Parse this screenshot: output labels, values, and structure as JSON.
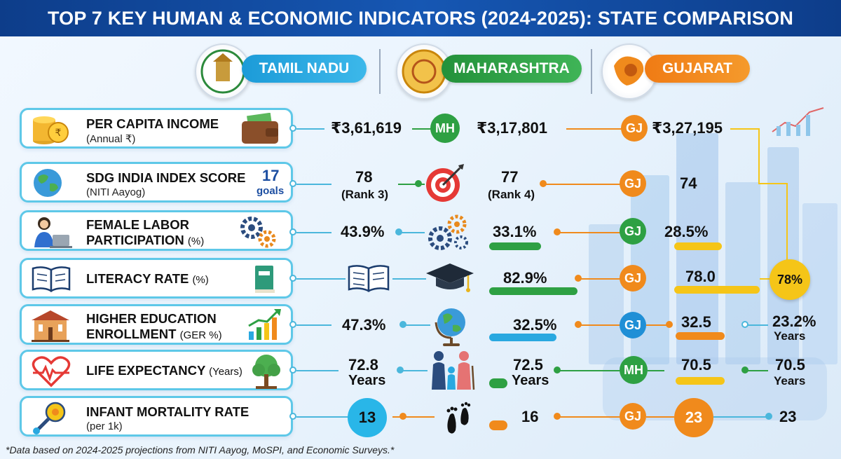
{
  "title": "TOP 7 KEY HUMAN & ECONOMIC INDICATORS (2024-2025): STATE COMPARISON",
  "colors": {
    "tamil_nadu": "#29a8e0",
    "maharashtra": "#2ea043",
    "gujarat": "#f08a1c",
    "card_border": "#5ec8e8",
    "title_bg": "#0d3d8a",
    "highlight_yellow": "#f5c518"
  },
  "states": [
    {
      "name": "TAMIL NADU",
      "emblem_icon": "tamil-nadu-emblem-icon"
    },
    {
      "name": "MAHARASHTRA",
      "emblem_icon": "maharashtra-emblem-icon"
    },
    {
      "name": "GUJARAT",
      "emblem_icon": "gujarat-map-lion-icon"
    }
  ],
  "indicators": {
    "income": {
      "label": "PER CAPITA INCOME",
      "sub": "(Annual ₹)",
      "icons": [
        "coins-icon",
        "wallet-icon"
      ],
      "tn": "₹3,61,619",
      "mh": "₹3,17,801",
      "gj": "₹3,27,195",
      "badges": [
        "MH",
        "GJ"
      ]
    },
    "sdg": {
      "label": "SDG INDIA INDEX SCORE",
      "sub": "(NITI Aayog)",
      "goals_number": "17",
      "goals_label": "goals",
      "icons": [
        "globe-icon",
        "target-icon"
      ],
      "tn": "78",
      "tn_rank": "(Rank 3)",
      "mh": "77",
      "mh_rank": "(Rank 4)",
      "gj": "74",
      "badges": [
        "GJ"
      ]
    },
    "female": {
      "label1": "FEMALE LABOR",
      "label2": "PARTICIPATION",
      "unit": "(%)",
      "icons": [
        "woman-laptop-icon",
        "gears-icon"
      ],
      "tn": "43.9%",
      "mh": "33.1%",
      "gj": "28.5%",
      "badges": [
        "GJ"
      ]
    },
    "literacy": {
      "label": "LITERACY RATE",
      "unit": "(%)",
      "icons": [
        "open-book-icon",
        "book-icon",
        "graduation-cap-icon"
      ],
      "mh": "82.9%",
      "gj": "78.0",
      "highlight": "78%",
      "badges": [
        "GJ"
      ]
    },
    "higher_ed": {
      "label1": "HIGHER EDUCATION",
      "label2": "ENROLLMENT",
      "unit": "(GER %)",
      "icons": [
        "school-building-icon",
        "growth-chart-icon",
        "desk-globe-icon"
      ],
      "tn": "47.3%",
      "mh": "32.5%",
      "gj": "32.5",
      "extra": "23.2%",
      "extra_unit": "Years",
      "badges": [
        "GJ"
      ]
    },
    "life": {
      "label": "LIFE EXPECTANCY",
      "unit": "(Years)",
      "icons": [
        "heartbeat-icon",
        "tree-icon",
        "family-icon"
      ],
      "tn": "72.8",
      "tn_unit": "Years",
      "mh": "72.5",
      "mh_unit": "Years",
      "gj": "70.5",
      "extra": "70.5",
      "extra_unit": "Years",
      "badges": [
        "MH"
      ]
    },
    "infant": {
      "label": "INFANT MORTALITY RATE",
      "sub": "(per 1k)",
      "icons": [
        "rattle-icon",
        "footprints-icon"
      ],
      "tn": "13",
      "mh": "16",
      "gj": "23",
      "extra": "23",
      "badges": [
        "GJ"
      ]
    }
  },
  "footnote": "*Data based on 2024-2025 projections from NITI Aayog, MoSPI, and Economic Surveys.*"
}
